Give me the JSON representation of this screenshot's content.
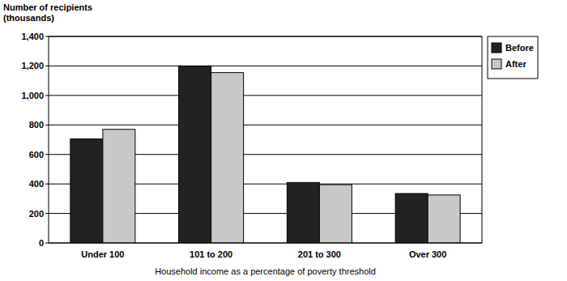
{
  "chart_data": {
    "type": "bar",
    "ylabel": "Number of recipients (thousands)",
    "xlabel": "Household income as a percentage of poverty threshold",
    "categories": [
      "Under 100",
      "101 to 200",
      "201 to 300",
      "Over 300"
    ],
    "series": [
      {
        "name": "Before",
        "color": "#222222",
        "values": [
          705,
          1200,
          410,
          335
        ]
      },
      {
        "name": "After",
        "color": "#c8c8c8",
        "values": [
          770,
          1155,
          395,
          325
        ]
      }
    ],
    "ylim": [
      0,
      1400
    ],
    "yticks": [
      0,
      200,
      400,
      600,
      800,
      {
        "value": 1000,
        "label": "1,000"
      },
      {
        "value": 1200,
        "label": "1,200"
      },
      {
        "value": 1400,
        "label": "1,400"
      }
    ],
    "grid": true,
    "legend": "right"
  }
}
